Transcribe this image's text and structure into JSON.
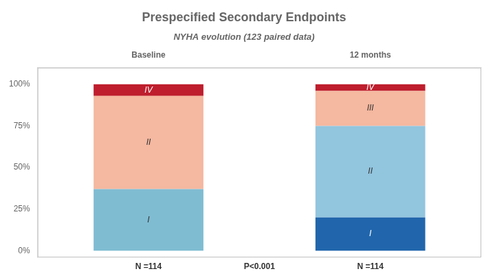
{
  "chart_data": {
    "type": "bar",
    "title": "Prespecified Secondary Endpoints",
    "subtitle": "NYHA evolution (123 paired data)",
    "categories": [
      "Baseline",
      "12 months"
    ],
    "stacked": true,
    "series": [
      {
        "name": "I",
        "colors": [
          "#7fbcd2",
          "#2166ac"
        ],
        "values": [
          37,
          20
        ]
      },
      {
        "name": "II",
        "colors": [
          "#f5b8a0",
          "#92c5de"
        ],
        "values": [
          56,
          55
        ]
      },
      {
        "name": "III",
        "colors": [
          null,
          "#f5b8a0"
        ],
        "values": [
          0,
          21
        ]
      },
      {
        "name": "IV",
        "colors": [
          "#be1e2d",
          "#be1e2d"
        ],
        "values": [
          7,
          4
        ]
      }
    ],
    "ylim": [
      -4,
      110
    ],
    "yticks": [
      {
        "value": 0,
        "label": "0%"
      },
      {
        "value": 25,
        "label": "25%"
      },
      {
        "value": 50,
        "label": "50%"
      },
      {
        "value": 75,
        "label": "75%"
      },
      {
        "value": 100,
        "label": "100%"
      }
    ],
    "grid": false,
    "annotations": [
      {
        "text": "N =114",
        "category": "Baseline"
      },
      {
        "text": "N =114",
        "category": "12 months"
      },
      {
        "text": "P<0.001"
      }
    ]
  }
}
